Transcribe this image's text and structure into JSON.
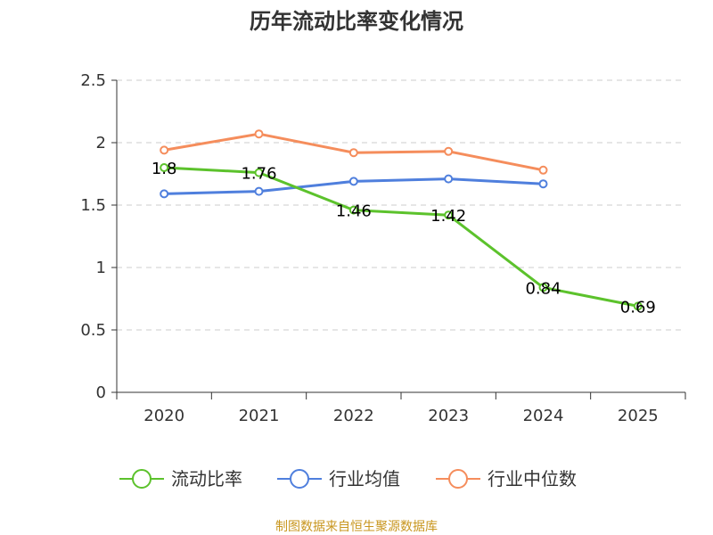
{
  "chart_data": {
    "type": "line",
    "title": "历年流动比率变化情况",
    "categories": [
      "2020",
      "2021",
      "2022",
      "2023",
      "2024",
      "2025"
    ],
    "ylim": [
      0,
      2.5
    ],
    "yticks": [
      0,
      0.5,
      1,
      1.5,
      2,
      2.5
    ],
    "ytick_labels": [
      "0",
      "0.5",
      "1",
      "1.5",
      "2",
      "2.5"
    ],
    "grid": true,
    "legend_position": "bottom",
    "series": [
      {
        "name": "流动比率",
        "color": "#5cc22c",
        "values": [
          1.8,
          1.76,
          1.46,
          1.42,
          0.84,
          0.69
        ],
        "data_labels": [
          "1.8",
          "1.76",
          "1.46",
          "1.42",
          "0.84",
          "0.69"
        ]
      },
      {
        "name": "行业均值",
        "color": "#4f7fdd",
        "values": [
          1.59,
          1.61,
          1.69,
          1.71,
          1.67,
          null
        ]
      },
      {
        "name": "行业中位数",
        "color": "#f58d5c",
        "values": [
          1.94,
          2.07,
          1.92,
          1.93,
          1.78,
          null
        ]
      }
    ]
  },
  "source": {
    "text": "制图数据来自恒生聚源数据库",
    "color": "#c8961e"
  }
}
